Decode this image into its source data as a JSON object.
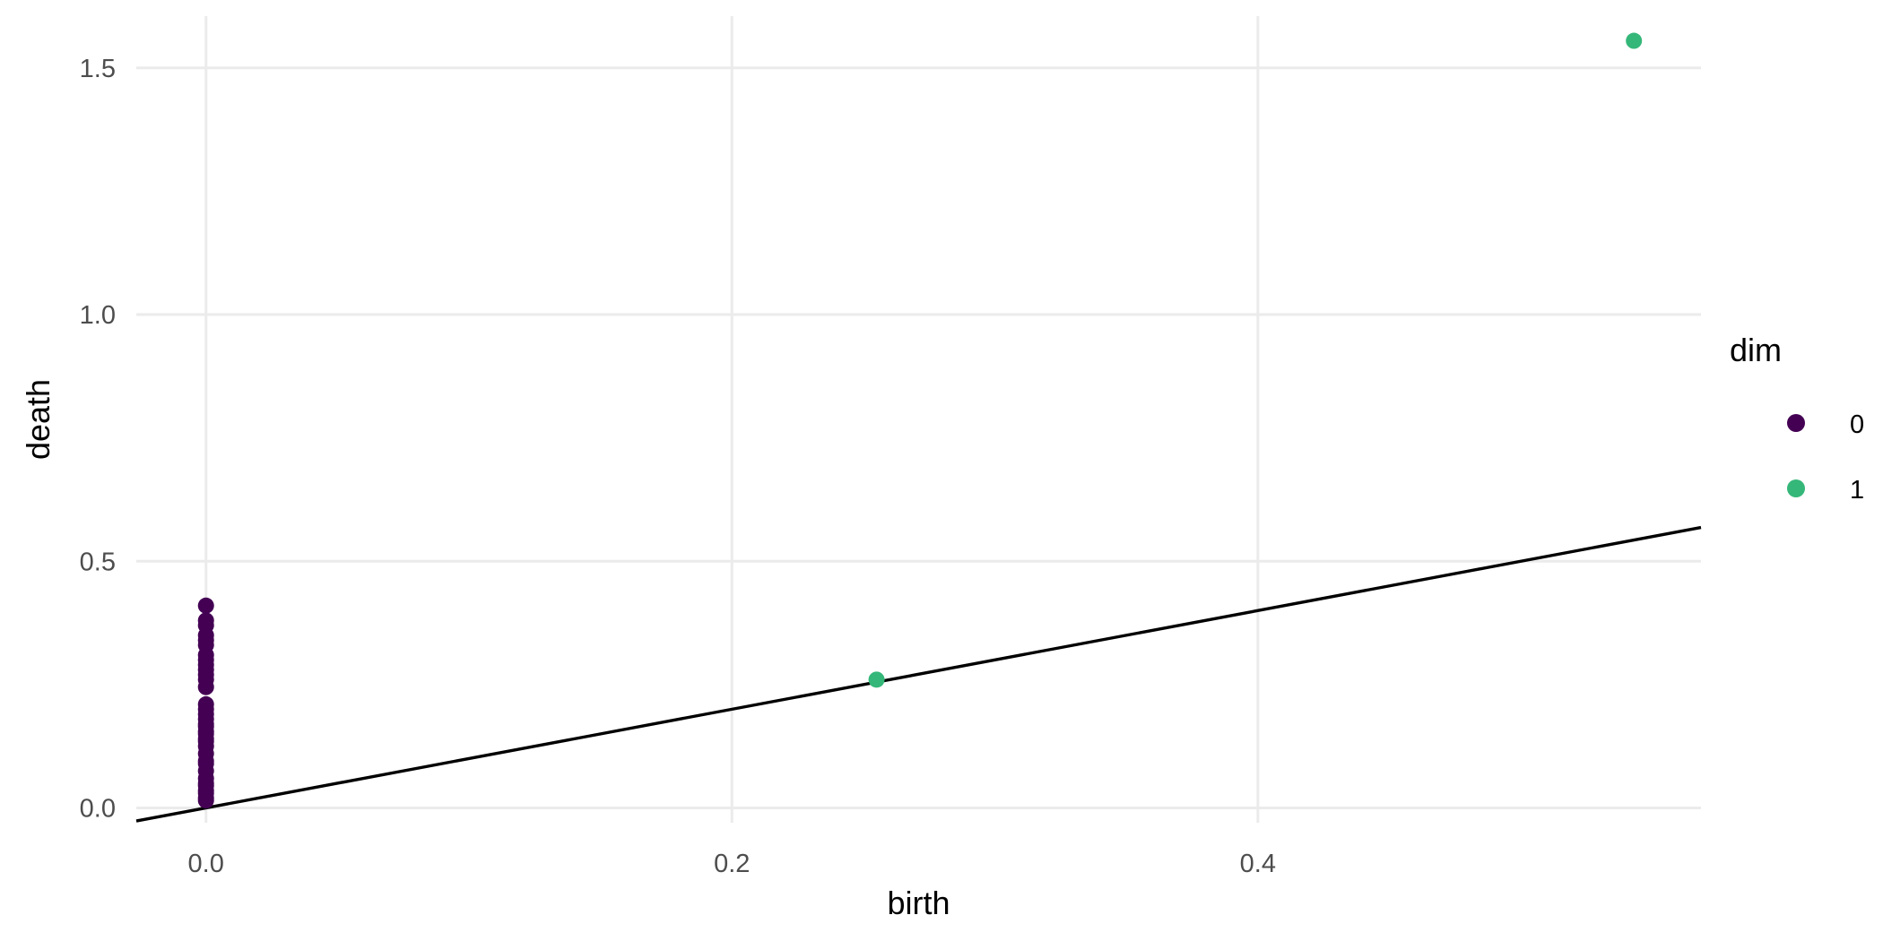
{
  "chart_data": {
    "type": "scatter",
    "title": "",
    "xlabel": "birth",
    "ylabel": "death",
    "xlim": [
      -0.0265,
      0.5685
    ],
    "ylim": [
      -0.03,
      1.605
    ],
    "x_ticks": [
      0.0,
      0.2,
      0.4
    ],
    "x_tick_labels": [
      "0.0",
      "0.2",
      "0.4"
    ],
    "y_ticks": [
      0.0,
      0.5,
      1.0,
      1.5
    ],
    "y_tick_labels": [
      "0.0",
      "0.5",
      "1.0",
      "1.5"
    ],
    "grid": true,
    "reference_line": {
      "type": "identity",
      "slope": 1,
      "intercept": 0,
      "color": "#000000"
    },
    "legend": {
      "title": "dim",
      "position": "right",
      "entries": [
        {
          "label": "0",
          "color": "#440154"
        },
        {
          "label": "1",
          "color": "#35b779"
        }
      ]
    },
    "series": [
      {
        "name": "0",
        "color": "#440154",
        "points": [
          [
            0,
            0.41
          ],
          [
            0,
            0.38
          ],
          [
            0,
            0.37
          ],
          [
            0,
            0.35
          ],
          [
            0,
            0.34
          ],
          [
            0,
            0.33
          ],
          [
            0,
            0.31
          ],
          [
            0,
            0.3
          ],
          [
            0,
            0.29
          ],
          [
            0,
            0.28
          ],
          [
            0,
            0.27
          ],
          [
            0,
            0.26
          ],
          [
            0,
            0.245
          ],
          [
            0,
            0.21
          ],
          [
            0,
            0.2
          ],
          [
            0,
            0.19
          ],
          [
            0,
            0.18
          ],
          [
            0,
            0.17
          ],
          [
            0,
            0.165
          ],
          [
            0,
            0.155
          ],
          [
            0,
            0.15
          ],
          [
            0,
            0.14
          ],
          [
            0,
            0.135
          ],
          [
            0,
            0.125
          ],
          [
            0,
            0.11
          ],
          [
            0,
            0.095
          ],
          [
            0,
            0.09
          ],
          [
            0,
            0.075
          ],
          [
            0,
            0.06
          ],
          [
            0,
            0.05
          ],
          [
            0,
            0.045
          ],
          [
            0,
            0.035
          ],
          [
            0,
            0.03
          ],
          [
            0,
            0.02
          ],
          [
            0,
            0.015
          ]
        ]
      },
      {
        "name": "1",
        "color": "#35b779",
        "points": [
          [
            0.255,
            0.26
          ],
          [
            0.543,
            1.555
          ]
        ]
      }
    ]
  }
}
